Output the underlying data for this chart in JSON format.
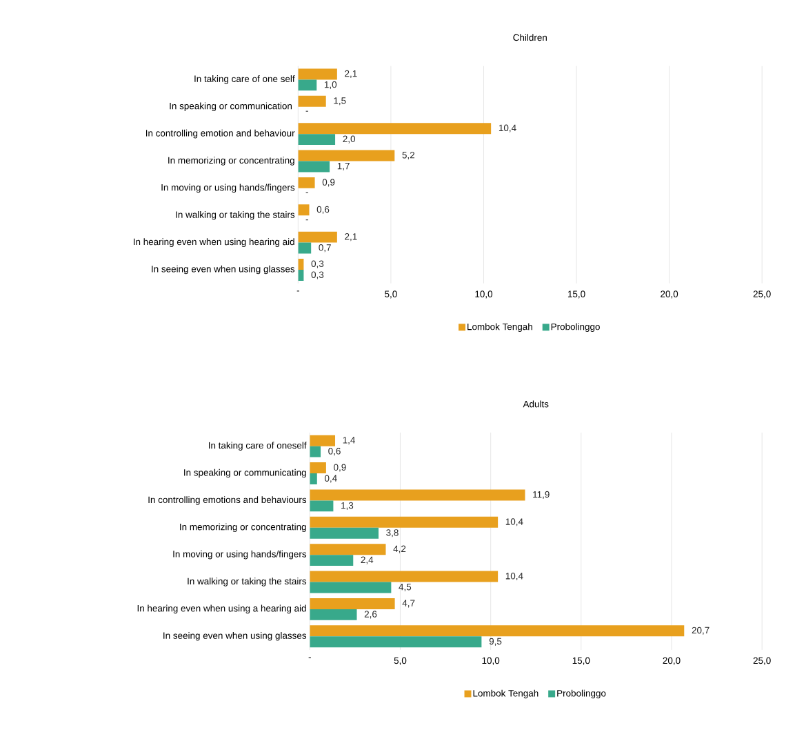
{
  "chart_data": [
    {
      "type": "bar",
      "orientation": "horizontal",
      "title": "Children",
      "categories": [
        "In taking care of one self",
        "In speaking or communication ",
        "In controlling emotion and behaviour",
        "In memorizing or concentrating",
        "In moving or using hands/fingers",
        "In walking or taking the stairs",
        "In hearing even when using hearing aid",
        "In seeing even when using glasses"
      ],
      "series": [
        {
          "name": "Lombok Tengah",
          "color": "#e8a01e",
          "values": [
            2.1,
            1.5,
            10.4,
            5.2,
            0.9,
            0.6,
            2.1,
            0.3
          ],
          "value_labels": [
            "2,1",
            "1,5",
            "10,4",
            "5,2",
            "0,9",
            "0,6",
            "2,1",
            "0,3"
          ]
        },
        {
          "name": "Probolinggo",
          "color": "#38a98b",
          "values": [
            1.0,
            0,
            2.0,
            1.7,
            0,
            0,
            0.7,
            0.3
          ],
          "value_labels": [
            "1,0",
            "-",
            "2,0",
            "1,7",
            "-",
            "-",
            "0,7",
            "0,3"
          ]
        }
      ],
      "xlim": [
        0,
        25
      ],
      "xticks": [
        {
          "value": 0,
          "label": "-"
        },
        {
          "value": 5,
          "label": "5,0"
        },
        {
          "value": 10,
          "label": "10,0"
        },
        {
          "value": 15,
          "label": "15,0"
        },
        {
          "value": 20,
          "label": "20,0"
        },
        {
          "value": 25,
          "label": "25,0"
        }
      ],
      "grid": "x",
      "legend": "bottom"
    },
    {
      "type": "bar",
      "orientation": "horizontal",
      "title": "Adults",
      "categories": [
        "In taking care of oneself",
        "In speaking or communicating",
        "In controlling emotions and behaviours",
        "In memorizing or concentrating",
        "In moving or using hands/fingers",
        "In walking or taking the stairs",
        "In hearing even when using a hearing aid",
        "In seeing even when using glasses"
      ],
      "series": [
        {
          "name": "Lombok Tengah",
          "color": "#e8a01e",
          "values": [
            1.4,
            0.9,
            11.9,
            10.4,
            4.2,
            10.4,
            4.7,
            20.7
          ],
          "value_labels": [
            "1,4",
            "0,9",
            "11,9",
            "10,4",
            "4,2",
            "10,4",
            "4,7",
            "20,7"
          ]
        },
        {
          "name": "Probolinggo",
          "color": "#38a98b",
          "values": [
            0.6,
            0.4,
            1.3,
            3.8,
            2.4,
            4.5,
            2.6,
            9.5
          ],
          "value_labels": [
            "0,6",
            "0,4",
            "1,3",
            "3,8",
            "2,4",
            "4,5",
            "2,6",
            "9,5"
          ]
        }
      ],
      "xlim": [
        0,
        25
      ],
      "xticks": [
        {
          "value": 0,
          "label": "-"
        },
        {
          "value": 5,
          "label": "5,0"
        },
        {
          "value": 10,
          "label": "10,0"
        },
        {
          "value": 15,
          "label": "15,0"
        },
        {
          "value": 20,
          "label": "20,0"
        },
        {
          "value": 25,
          "label": "25,0"
        }
      ],
      "grid": "x",
      "legend": "bottom"
    }
  ]
}
